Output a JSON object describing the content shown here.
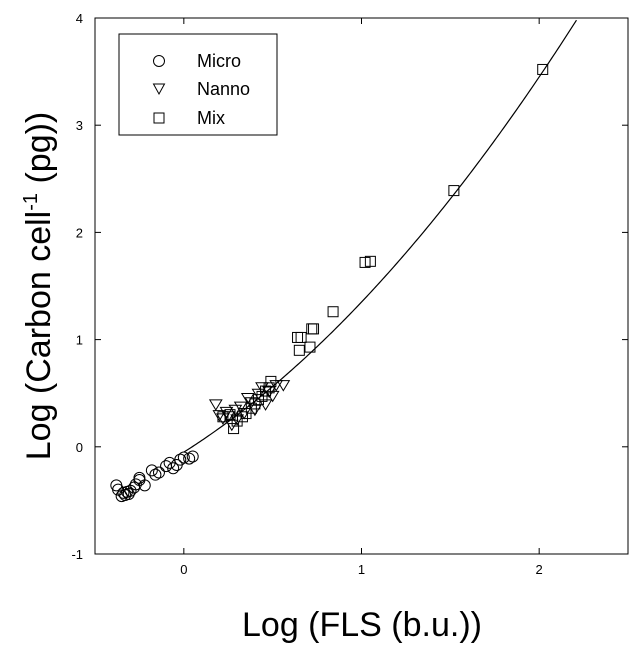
{
  "chart_data": {
    "type": "scatter",
    "title": "",
    "xlabel": "Log (FLS (b.u.))",
    "ylabel": "Log (Carbon cell",
    "ylabel_sup": "-1",
    "ylabel_unit": " (pg))",
    "xlim": [
      -0.5,
      2.5
    ],
    "ylim": [
      -1,
      4
    ],
    "xticks": [
      0,
      1,
      2
    ],
    "xtick_labels": [
      "0",
      "1",
      "2"
    ],
    "yticks": [
      -1,
      0,
      1,
      2,
      3,
      4
    ],
    "ytick_labels": [
      "-1",
      "0",
      "1",
      "2",
      "3",
      "4"
    ],
    "grid": false,
    "legend_position": "top-left",
    "fit_curve": {
      "type": "quadratic",
      "coefficients": [
        -0.05,
        1.05,
        0.35
      ]
    },
    "series": [
      {
        "name": "Micro",
        "marker": "circle",
        "points": [
          [
            -0.38,
            -0.36
          ],
          [
            -0.37,
            -0.4
          ],
          [
            -0.35,
            -0.46
          ],
          [
            -0.34,
            -0.43
          ],
          [
            -0.33,
            -0.45
          ],
          [
            -0.32,
            -0.42
          ],
          [
            -0.31,
            -0.44
          ],
          [
            -0.3,
            -0.41
          ],
          [
            -0.28,
            -0.38
          ],
          [
            -0.27,
            -0.35
          ],
          [
            -0.25,
            -0.29
          ],
          [
            -0.25,
            -0.31
          ],
          [
            -0.22,
            -0.36
          ],
          [
            -0.18,
            -0.22
          ],
          [
            -0.16,
            -0.26
          ],
          [
            -0.14,
            -0.24
          ],
          [
            -0.1,
            -0.18
          ],
          [
            -0.08,
            -0.15
          ],
          [
            -0.06,
            -0.2
          ],
          [
            -0.04,
            -0.17
          ],
          [
            -0.02,
            -0.12
          ],
          [
            0.0,
            -0.1
          ],
          [
            0.03,
            -0.11
          ],
          [
            0.05,
            -0.09
          ]
        ]
      },
      {
        "name": "Nanno",
        "marker": "triangle-down",
        "points": [
          [
            0.18,
            0.4
          ],
          [
            0.2,
            0.3
          ],
          [
            0.22,
            0.27
          ],
          [
            0.24,
            0.33
          ],
          [
            0.25,
            0.29
          ],
          [
            0.27,
            0.21
          ],
          [
            0.29,
            0.35
          ],
          [
            0.3,
            0.26
          ],
          [
            0.32,
            0.38
          ],
          [
            0.34,
            0.32
          ],
          [
            0.36,
            0.46
          ],
          [
            0.38,
            0.42
          ],
          [
            0.4,
            0.35
          ],
          [
            0.42,
            0.5
          ],
          [
            0.44,
            0.56
          ],
          [
            0.46,
            0.4
          ],
          [
            0.48,
            0.52
          ],
          [
            0.5,
            0.48
          ],
          [
            0.52,
            0.58
          ],
          [
            0.56,
            0.58
          ]
        ]
      },
      {
        "name": "Mix",
        "marker": "square",
        "points": [
          [
            0.22,
            0.28
          ],
          [
            0.26,
            0.3
          ],
          [
            0.28,
            0.17
          ],
          [
            0.3,
            0.24
          ],
          [
            0.33,
            0.28
          ],
          [
            0.35,
            0.31
          ],
          [
            0.38,
            0.36
          ],
          [
            0.4,
            0.4
          ],
          [
            0.42,
            0.44
          ],
          [
            0.44,
            0.47
          ],
          [
            0.46,
            0.52
          ],
          [
            0.48,
            0.55
          ],
          [
            0.49,
            0.61
          ],
          [
            0.64,
            1.02
          ],
          [
            0.65,
            0.9
          ],
          [
            0.66,
            1.02
          ],
          [
            0.71,
            0.93
          ],
          [
            0.72,
            1.1
          ],
          [
            0.73,
            1.1
          ],
          [
            0.84,
            1.26
          ],
          [
            1.02,
            1.72
          ],
          [
            1.05,
            1.73
          ],
          [
            1.52,
            2.39
          ],
          [
            2.02,
            3.52
          ]
        ]
      }
    ]
  }
}
